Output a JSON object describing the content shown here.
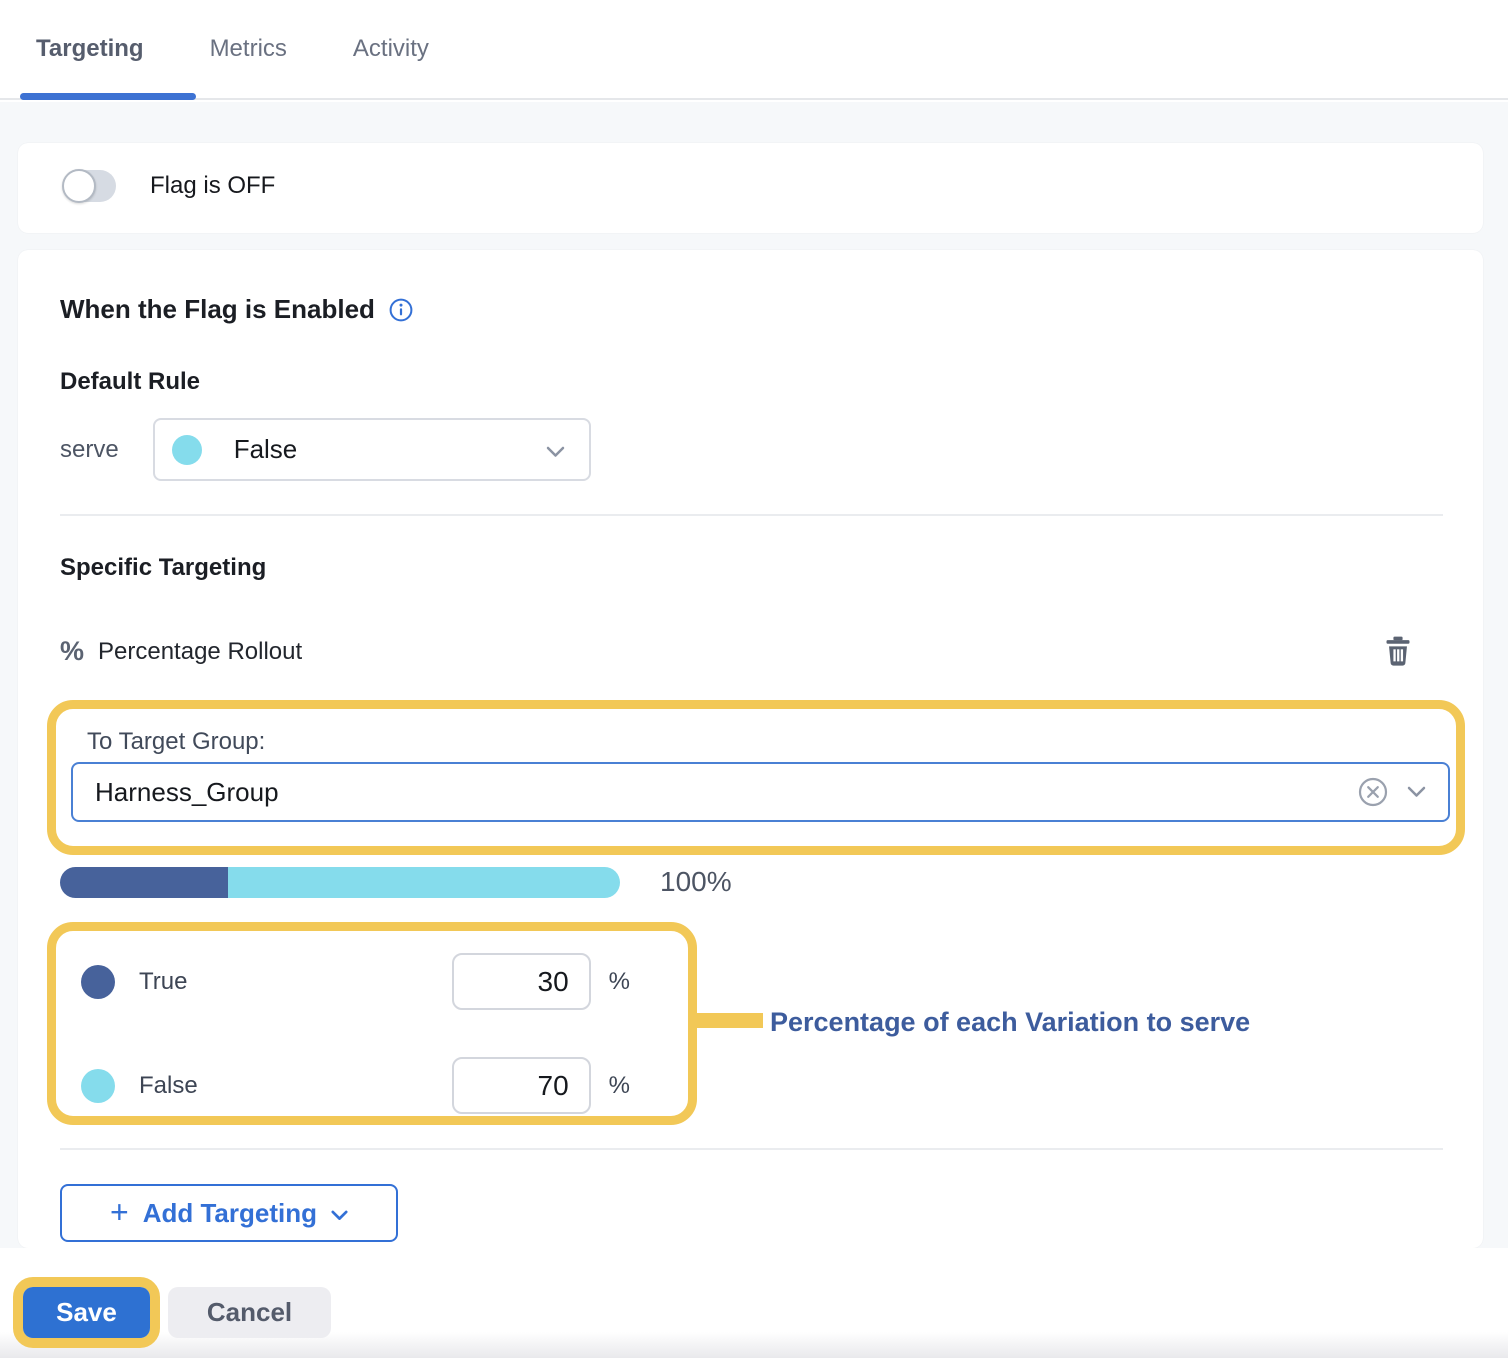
{
  "tabs": {
    "items": [
      {
        "label": "Targeting"
      },
      {
        "label": "Metrics"
      },
      {
        "label": "Activity"
      }
    ],
    "active_index": 0
  },
  "flag_card": {
    "toggle_label": "Flag is OFF",
    "toggle_state": "off"
  },
  "rules_card": {
    "title": "When the Flag is Enabled",
    "default_rule_heading": "Default Rule",
    "serve_label": "serve",
    "serve_selected": "False",
    "specific_heading": "Specific Targeting",
    "rollout_icon": "%",
    "rollout_title": "Percentage Rollout",
    "target_group_label": "To Target Group:",
    "target_group_value": "Harness_Group",
    "total_percent": "100%",
    "variations": [
      {
        "name": "True",
        "weight": "30",
        "unit": "%",
        "color": "#47629b"
      },
      {
        "name": "False",
        "weight": "70",
        "unit": "%",
        "color": "#85dcec"
      }
    ],
    "annotation": "Percentage of each Variation to serve",
    "add_targeting_plus": "+",
    "add_targeting_label": "Add Targeting"
  },
  "footer": {
    "save_label": "Save",
    "cancel_label": "Cancel"
  },
  "colors": {
    "accent_blue": "#3370d6",
    "highlight_yellow": "#f2c857",
    "true_color": "#47629b",
    "false_color": "#85dcec",
    "annotation_blue": "#3d5c9d",
    "page_background": "#f6f8fa"
  }
}
